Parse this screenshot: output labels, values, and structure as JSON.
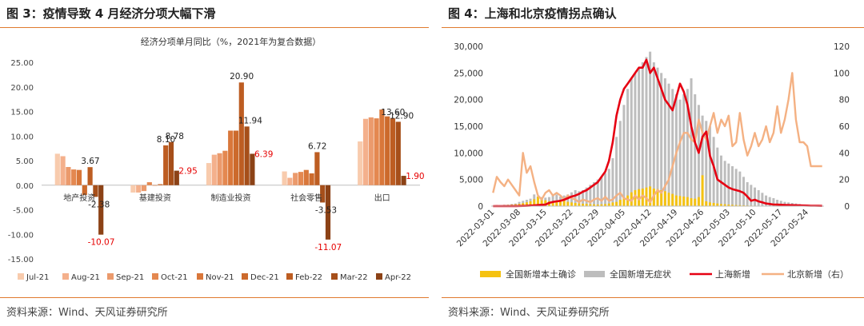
{
  "left": {
    "figure_title": "图 3：疫情导致 4 月经济分项大幅下滑",
    "source": "资料来源：Wind、天风证券研究所"
  },
  "right": {
    "figure_title": "图 4：上海和北京疫情拐点确认",
    "source": "资料来源：Wind、天风证券研究所"
  },
  "colors": {
    "accent_rule": "#e07a2e",
    "red_label": "#e60000",
    "domestic_confirmed": "#f5c211",
    "asymptomatic": "#bdbdbd",
    "shanghai": "#e60012",
    "beijing": "#f4b183"
  },
  "chart_data": [
    {
      "type": "bar",
      "title": "经济分项单月同比（%，2021年为复合数据）",
      "categories": [
        "地产投资",
        "基建投资",
        "制造业投资",
        "社会零售",
        "出口"
      ],
      "ylim": [
        -15,
        25
      ],
      "yticks": [
        "-15.00",
        "-10.00",
        "-5.00",
        "0.00",
        "5.00",
        "10.00",
        "15.00",
        "20.00",
        "25.00"
      ],
      "legend_position": "bottom",
      "series": [
        {
          "name": "Jul-21",
          "color": "#f8cbad",
          "values": [
            6.4,
            -1.5,
            4.5,
            2.8,
            8.9
          ]
        },
        {
          "name": "Aug-21",
          "color": "#f4b08c",
          "values": [
            5.9,
            -1.5,
            6.2,
            1.5,
            13.5
          ]
        },
        {
          "name": "Sep-21",
          "color": "#eb9a6c",
          "values": [
            3.7,
            -1.2,
            6.5,
            2.5,
            13.8
          ]
        },
        {
          "name": "Oct-21",
          "color": "#e48850",
          "values": [
            3.2,
            0.6,
            7.0,
            2.7,
            13.6
          ]
        },
        {
          "name": "Nov-21",
          "color": "#d9773a",
          "values": [
            3.1,
            -0.1,
            11.1,
            3.1,
            15.4
          ]
        },
        {
          "name": "Dec-21",
          "color": "#cc6a2c",
          "values": [
            -2.0,
            0.2,
            11.1,
            2.4,
            14.0
          ]
        },
        {
          "name": "Feb-22",
          "color": "#bd5d22",
          "values": [
            3.67,
            8.1,
            20.9,
            6.72,
            13.6
          ]
        },
        {
          "name": "Mar-22",
          "color": "#a64f1a",
          "values": [
            -2.38,
            8.78,
            11.94,
            -3.53,
            12.9
          ]
        },
        {
          "name": "Apr-22",
          "color": "#8c4216",
          "values": [
            -10.07,
            2.95,
            6.39,
            -11.07,
            1.9
          ]
        }
      ],
      "data_labels": [
        {
          "category": 0,
          "series": 6,
          "text": "3.67",
          "red": false
        },
        {
          "category": 0,
          "series": 7,
          "text": "-2.38",
          "red": false
        },
        {
          "category": 0,
          "series": 8,
          "text": "-10.07",
          "red": true
        },
        {
          "category": 1,
          "series": 6,
          "text": "8.10",
          "red": false
        },
        {
          "category": 1,
          "series": 7,
          "text": "8.78",
          "red": false
        },
        {
          "category": 1,
          "series": 8,
          "text": "2.95",
          "red": true
        },
        {
          "category": 2,
          "series": 6,
          "text": "20.90",
          "red": false
        },
        {
          "category": 2,
          "series": 7,
          "text": "11.94",
          "red": false
        },
        {
          "category": 2,
          "series": 8,
          "text": "6.39",
          "red": true
        },
        {
          "category": 3,
          "series": 6,
          "text": "6.72",
          "red": false
        },
        {
          "category": 3,
          "series": 7,
          "text": "-3.53",
          "red": false
        },
        {
          "category": 3,
          "series": 8,
          "text": "-11.07",
          "red": true
        },
        {
          "category": 4,
          "series": 6,
          "text": "13.60",
          "red": false
        },
        {
          "category": 4,
          "series": 7,
          "text": "12.90",
          "red": false
        },
        {
          "category": 4,
          "series": 8,
          "text": "1.90",
          "red": true
        }
      ]
    },
    {
      "type": "bar+line",
      "start_date": "2022-03-01",
      "xtick_labels": [
        "2022-03-01",
        "2022-03-08",
        "2022-03-15",
        "2022-03-22",
        "2022-03-29",
        "2022-04-05",
        "2022-04-12",
        "2022-04-19",
        "2022-04-26",
        "2022-05-03",
        "2022-05-10",
        "2022-05-17",
        "2022-05-24"
      ],
      "ylim_left": [
        0,
        30000
      ],
      "ylim_right": [
        0,
        120
      ],
      "yticks_left": [
        "0",
        "5,000",
        "10,000",
        "15,000",
        "20,000",
        "25,000",
        "30,000"
      ],
      "yticks_right": [
        "0",
        "20",
        "40",
        "60",
        "80",
        "100",
        "120"
      ],
      "legend_position": "bottom",
      "series": [
        {
          "name": "全国新增本土确诊",
          "kind": "bar",
          "axis": "left",
          "values": [
            80,
            100,
            140,
            180,
            220,
            270,
            330,
            420,
            560,
            720,
            900,
            1300,
            1800,
            1500,
            1100,
            900,
            700,
            900,
            1000,
            1100,
            800,
            700,
            600,
            500,
            450,
            420,
            380,
            330,
            300,
            350,
            380,
            500,
            700,
            800,
            1200,
            1500,
            2000,
            2600,
            3000,
            3200,
            3300,
            3500,
            3700,
            3300,
            3200,
            3000,
            2800,
            2500,
            2300,
            2000,
            1900,
            1800,
            1700,
            1500,
            1400,
            1700,
            5800,
            900,
            700,
            600,
            500,
            400,
            350,
            300,
            250,
            200,
            180,
            150,
            120,
            100,
            90,
            80,
            70,
            60,
            50,
            40,
            30,
            25,
            20,
            15,
            12,
            10,
            8,
            6,
            5,
            4,
            3,
            2,
            2
          ]
        },
        {
          "name": "全国新增无症状",
          "kind": "bar",
          "axis": "left",
          "values": [
            100,
            150,
            200,
            250,
            300,
            400,
            500,
            800,
            1000,
            1200,
            1400,
            2200,
            1800,
            1700,
            1600,
            1700,
            2000,
            2200,
            1800,
            2000,
            2200,
            2600,
            3000,
            2800,
            3000,
            3500,
            4000,
            4500,
            5000,
            5500,
            6200,
            7000,
            9000,
            13000,
            16000,
            19000,
            22000,
            24000,
            25000,
            26000,
            27000,
            28000,
            29000,
            27000,
            26000,
            25000,
            24000,
            23000,
            22000,
            21000,
            20000,
            21000,
            22000,
            24000,
            21000,
            19000,
            17000,
            16000,
            15000,
            13000,
            11000,
            9500,
            8500,
            8000,
            7500,
            7000,
            6500,
            5500,
            4500,
            4000,
            3500,
            3000,
            2500,
            2000,
            1700,
            1500,
            1200,
            1000,
            800,
            700,
            600,
            500,
            400,
            300,
            250,
            200,
            150,
            100,
            80
          ]
        },
        {
          "name": "上海新增",
          "kind": "line",
          "axis": "left",
          "values": [
            0,
            10,
            0,
            20,
            5,
            10,
            20,
            30,
            50,
            60,
            100,
            150,
            200,
            250,
            300,
            600,
            800,
            900,
            1000,
            1200,
            1500,
            1800,
            2000,
            2300,
            2700,
            3000,
            3500,
            4000,
            4500,
            5500,
            6500,
            8500,
            12000,
            17000,
            20000,
            22000,
            23000,
            24000,
            25000,
            26000,
            26000,
            27500,
            25000,
            26000,
            24000,
            22000,
            20000,
            19000,
            18000,
            20500,
            23000,
            21500,
            19000,
            15000,
            12000,
            10000,
            13000,
            14000,
            9500,
            7500,
            5000,
            4500,
            4000,
            3500,
            3200,
            3000,
            2800,
            2500,
            1800,
            1000,
            1200,
            900,
            700,
            500,
            400,
            300,
            280,
            250,
            220,
            200,
            180,
            170,
            150,
            120,
            100,
            80,
            70,
            60,
            50
          ]
        },
        {
          "name": "北京新增（右）",
          "kind": "line",
          "axis": "right",
          "values": [
            10,
            22,
            18,
            15,
            20,
            16,
            12,
            8,
            40,
            25,
            30,
            18,
            8,
            5,
            10,
            12,
            8,
            10,
            8,
            5,
            8,
            6,
            5,
            3,
            5,
            4,
            3,
            5,
            6,
            4,
            7,
            4,
            5,
            8,
            10,
            6,
            5,
            4,
            8,
            5,
            8,
            6,
            3,
            8,
            12,
            10,
            15,
            20,
            30,
            40,
            48,
            55,
            55,
            50,
            48,
            65,
            55,
            50,
            60,
            70,
            55,
            65,
            60,
            68,
            45,
            48,
            70,
            50,
            38,
            45,
            55,
            45,
            50,
            60,
            48,
            55,
            75,
            55,
            65,
            80,
            100,
            65,
            48,
            48,
            45,
            30,
            30,
            30,
            30
          ]
        }
      ]
    }
  ]
}
